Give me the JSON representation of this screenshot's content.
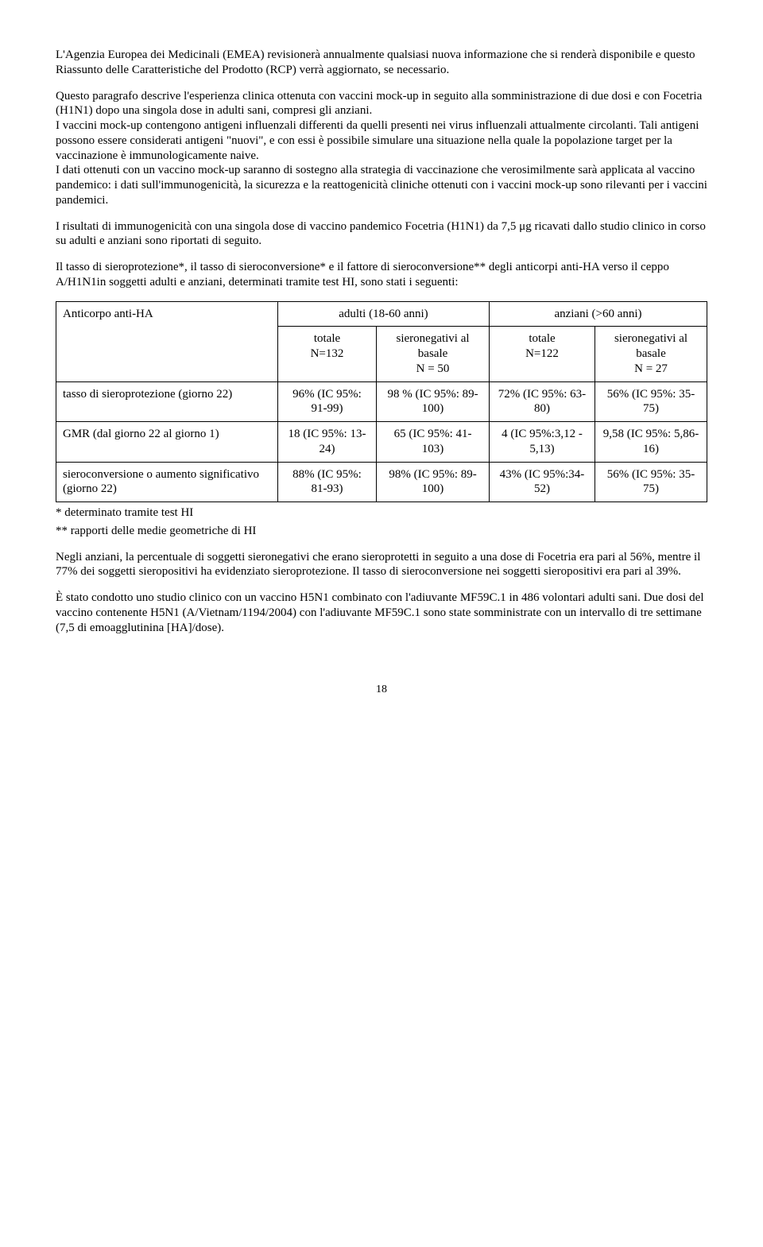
{
  "paragraphs": {
    "p1": "L'Agenzia Europea dei Medicinali (EMEA) revisionerà annualmente qualsiasi nuova informazione che si renderà disponibile e questo Riassunto delle Caratteristiche del Prodotto (RCP) verrà aggiornato, se necessario.",
    "p2": "Questo paragrafo descrive l'esperienza clinica ottenuta con vaccini mock-up in seguito alla somministrazione di due dosi e con Focetria (H1N1) dopo una singola dose in adulti sani, compresi gli anziani.",
    "p3": "I vaccini mock-up contengono antigeni influenzali differenti da quelli presenti nei virus influenzali attualmente circolanti. Tali antigeni possono essere considerati antigeni \"nuovi\", e con essi è possibile simulare una situazione nella quale la popolazione target per la vaccinazione è immunologicamente naive.",
    "p4": "I dati ottenuti con un vaccino mock-up saranno di sostegno alla strategia di vaccinazione che verosimilmente sarà applicata al vaccino pandemico: i dati sull'immunogenicità, la sicurezza e la reattogenicità cliniche ottenuti con i vaccini mock-up sono rilevanti per i vaccini pandemici.",
    "p5": "I risultati di immunogenicità con una singola dose di vaccino pandemico Focetria (H1N1) da 7,5 μg ricavati dallo studio clinico in corso su adulti e anziani sono riportati di seguito.",
    "p6": "Il tasso di sieroprotezione*, il tasso di sieroconversione* e il fattore di sieroconversione** degli anticorpi anti-HA verso il ceppo A/H1N1in soggetti adulti e anziani, determinati tramite test HI, sono stati i seguenti:",
    "p7": "Negli anziani, la percentuale di soggetti sieronegativi che erano sieroprotetti in seguito a una dose di Focetria era pari al 56%, mentre il 77% dei soggetti sieropositivi ha evidenziato sieroprotezione. Il tasso di sieroconversione nei soggetti sieropositivi era pari al 39%.",
    "p8": "È stato condotto uno studio clinico con un vaccino H5N1 combinato con l'adiuvante MF59C.1 in 486 volontari adulti sani. Due dosi del vaccino contenente H5N1 (A/Vietnam/1194/2004) con l'adiuvante MF59C.1 sono state somministrate con un intervallo di tre settimane (7,5 di emoagglutinina [HA]/dose)."
  },
  "table": {
    "header": {
      "corner": "Anticorpo anti-HA",
      "adults": "adulti (18-60 anni)",
      "elderly": "anziani (>60 anni)",
      "total_label": "totale",
      "adults_n": "N=132",
      "seroneg_label": "sieronegativi al basale",
      "adults_seroneg_n": "N = 50",
      "elderly_n": "N=122",
      "elderly_seroneg_n": "N = 27"
    },
    "rows": [
      {
        "label": "tasso di sieroprotezione (giorno 22)",
        "c1": "96% (IC 95%: 91-99)",
        "c2": "98 % (IC 95%: 89-100)",
        "c3": "72% (IC 95%: 63-80)",
        "c4": "56% (IC 95%: 35-75)"
      },
      {
        "label": "GMR (dal giorno 22 al giorno 1)",
        "c1": "18 (IC 95%: 13-24)",
        "c2": "65 (IC 95%: 41-103)",
        "c3": "4 (IC 95%:3,12 - 5,13)",
        "c4": "9,58 (IC 95%: 5,86-16)"
      },
      {
        "label": "sieroconversione o aumento significativo (giorno 22)",
        "c1": "88% (IC 95%: 81-93)",
        "c2": "98% (IC 95%: 89-100)",
        "c3": "43% (IC 95%:34-52)",
        "c4": "56% (IC 95%: 35-75)"
      }
    ],
    "footnotes": {
      "f1": "* determinato tramite test HI",
      "f2": "** rapporti delle medie geometriche di HI"
    }
  },
  "page_number": "18"
}
